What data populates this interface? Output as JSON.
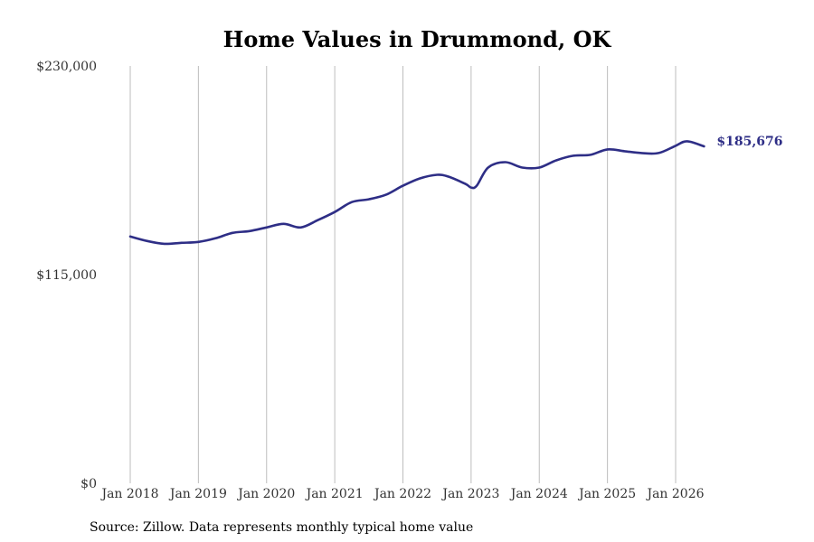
{
  "chart_data": {
    "type": "line",
    "title": "Home Values in Drummond, OK",
    "source": "Source: Zillow. Data represents monthly typical home value",
    "ylim": [
      0,
      230000
    ],
    "yticks": [
      {
        "value": 230000,
        "label": "$230,000"
      },
      {
        "value": 115000,
        "label": "$115,000"
      },
      {
        "value": 0,
        "label": "$0"
      }
    ],
    "xticks": [
      {
        "value": 2018.0,
        "label": "Jan 2018"
      },
      {
        "value": 2019.0,
        "label": "Jan 2019"
      },
      {
        "value": 2020.0,
        "label": "Jan 2020"
      },
      {
        "value": 2021.0,
        "label": "Jan 2021"
      },
      {
        "value": 2022.0,
        "label": "Jan 2022"
      },
      {
        "value": 2023.0,
        "label": "Jan 2023"
      },
      {
        "value": 2024.0,
        "label": "Jan 2024"
      },
      {
        "value": 2025.0,
        "label": "Jan 2025"
      },
      {
        "value": 2026.0,
        "label": "Jan 2026"
      }
    ],
    "xlim": [
      2017.0,
      2029.0
    ],
    "grid": "vertical",
    "line_color": "#2e2e86",
    "end_label": "$185,676",
    "series": [
      {
        "x": [
          2018.0,
          2018.25,
          2018.5,
          2018.75,
          2019.0,
          2019.25,
          2019.5,
          2019.75,
          2020.0,
          2020.25,
          2020.5,
          2020.75,
          2021.0,
          2021.25,
          2021.5,
          2021.75,
          2022.0,
          2022.25,
          2022.5,
          2022.667,
          2022.917,
          2023.0,
          2023.083,
          2023.25,
          2023.5,
          2023.75,
          2024.0,
          2024.25,
          2024.5,
          2024.75,
          2025.0,
          2025.25,
          2025.5,
          2025.75,
          2026.0,
          2026.167,
          2026.417
        ],
        "values": [
          136000,
          133500,
          132000,
          132500,
          133000,
          135000,
          138000,
          139000,
          141000,
          143000,
          141000,
          145000,
          149500,
          155000,
          156500,
          159000,
          164000,
          168000,
          170000,
          169000,
          165000,
          163000,
          164000,
          174000,
          177000,
          174000,
          174000,
          178000,
          180500,
          181000,
          184000,
          183000,
          182000,
          182000,
          186000,
          188500,
          185676
        ]
      }
    ]
  }
}
